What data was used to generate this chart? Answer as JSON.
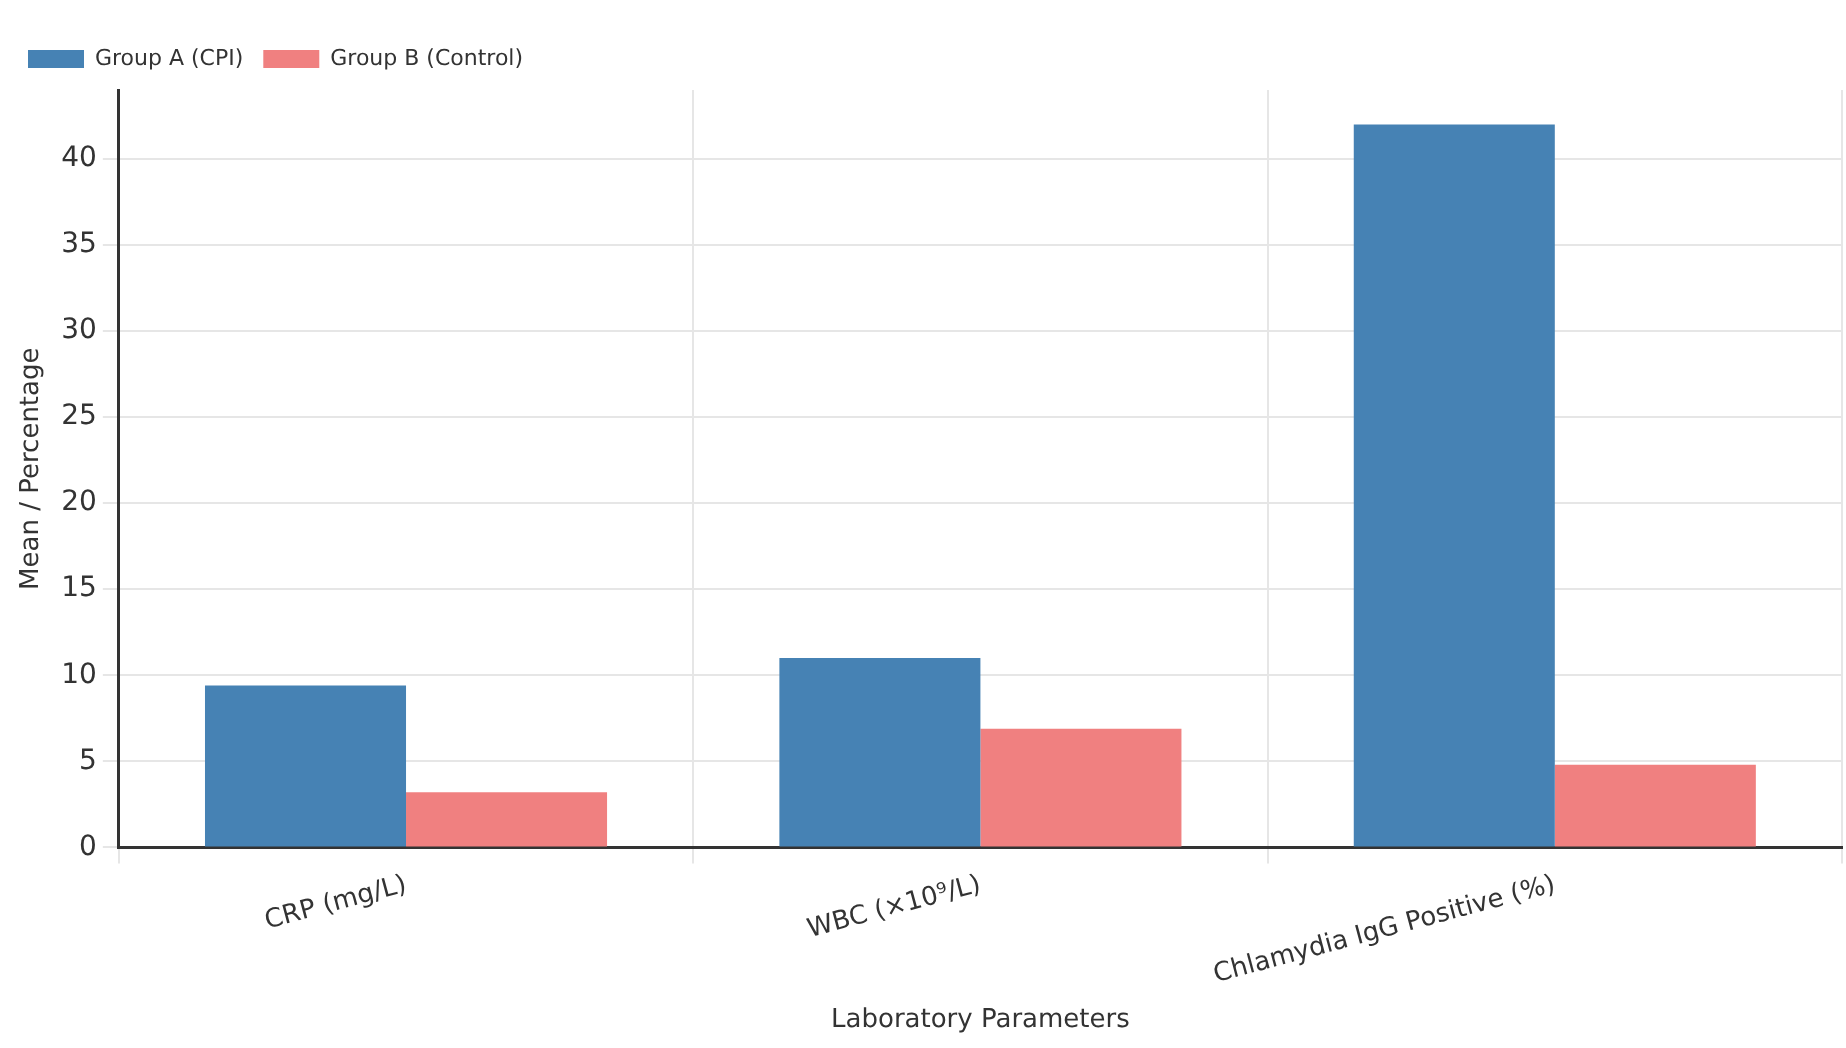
{
  "chart_data": {
    "type": "bar",
    "xlabel": "Laboratory Parameters",
    "ylabel": "Mean / Percentage",
    "categories": [
      "CRP (mg/L)",
      "WBC (×10⁹/L)",
      "Chlamydia IgG Positive (%)"
    ],
    "series": [
      {
        "name": "Group A (CPI)",
        "color": "#4682b4",
        "values": [
          9.4,
          11.0,
          42.0
        ]
      },
      {
        "name": "Group B (Control)",
        "color": "#f08080",
        "values": [
          3.2,
          6.9,
          4.8
        ]
      }
    ],
    "ylim": [
      0,
      44
    ],
    "yticks": [
      0,
      5,
      10,
      15,
      20,
      25,
      30,
      35,
      40
    ],
    "grid": true,
    "legend": "top left"
  }
}
